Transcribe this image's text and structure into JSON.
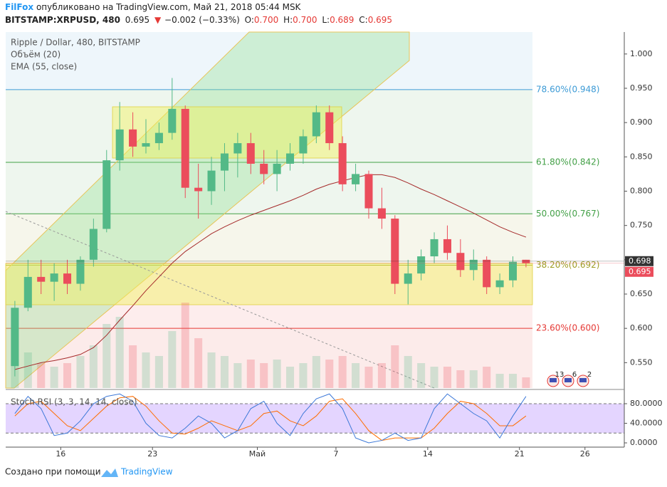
{
  "header": {
    "author": "FilFox",
    "published": "опубликовано на TradingView.com, Май 21, 2018 05:44 MSK",
    "symbol": "BITSTAMP:XRPUSD, 480",
    "last": "0.695",
    "arrow": "▼",
    "change": "−0.002 (−0.33%)",
    "o_label": "O:",
    "o": "0.700",
    "h_label": "H:",
    "h": "0.700",
    "l_label": "L:",
    "l": "0.689",
    "c_label": "C:",
    "c": "0.695"
  },
  "chart_data": {
    "type": "candlestick",
    "title": "Ripple / Dollar, 480, BITSTAMP",
    "volume_title": "Объём (20)",
    "ema_title": "EMA (55, close)",
    "x": [
      12.5,
      13.5,
      14.5,
      15.5,
      16.5,
      17.5,
      18.5,
      19.5,
      20.5,
      21.5,
      22.5,
      23.5,
      24.5,
      25.5,
      26.5,
      27.5,
      28.5,
      29.5,
      30.5,
      31.5,
      32.5,
      33.5,
      34.5,
      35.5,
      36.5,
      37.5,
      38.5,
      39.5,
      40.5,
      41.5,
      42.5,
      43.5,
      44.5,
      45.5,
      46.5,
      47.5,
      48.5,
      49.5,
      50.5,
      51.5
    ],
    "open": [
      0.545,
      0.63,
      0.675,
      0.668,
      0.68,
      0.665,
      0.7,
      0.745,
      0.845,
      0.89,
      0.865,
      0.87,
      0.885,
      0.92,
      0.805,
      0.8,
      0.83,
      0.855,
      0.87,
      0.84,
      0.825,
      0.84,
      0.855,
      0.88,
      0.915,
      0.87,
      0.81,
      0.825,
      0.775,
      0.76,
      0.665,
      0.68,
      0.705,
      0.73,
      0.71,
      0.685,
      0.7,
      0.66,
      0.67,
      0.7
    ],
    "high": [
      0.64,
      0.7,
      0.7,
      0.695,
      0.7,
      0.705,
      0.76,
      0.86,
      0.93,
      0.915,
      0.905,
      0.9,
      0.965,
      0.925,
      0.84,
      0.85,
      0.87,
      0.885,
      0.885,
      0.86,
      0.86,
      0.87,
      0.89,
      0.925,
      0.925,
      0.88,
      0.84,
      0.83,
      0.805,
      0.765,
      0.7,
      0.715,
      0.74,
      0.75,
      0.73,
      0.715,
      0.705,
      0.68,
      0.705,
      0.7
    ],
    "low": [
      0.53,
      0.625,
      0.65,
      0.64,
      0.65,
      0.655,
      0.69,
      0.74,
      0.83,
      0.85,
      0.855,
      0.86,
      0.875,
      0.79,
      0.76,
      0.78,
      0.8,
      0.82,
      0.825,
      0.81,
      0.8,
      0.83,
      0.84,
      0.87,
      0.86,
      0.8,
      0.8,
      0.76,
      0.745,
      0.65,
      0.635,
      0.67,
      0.695,
      0.7,
      0.675,
      0.67,
      0.65,
      0.65,
      0.66,
      0.689
    ],
    "close": [
      0.63,
      0.675,
      0.668,
      0.68,
      0.665,
      0.7,
      0.745,
      0.845,
      0.89,
      0.865,
      0.87,
      0.885,
      0.92,
      0.805,
      0.8,
      0.83,
      0.855,
      0.87,
      0.84,
      0.825,
      0.84,
      0.855,
      0.88,
      0.915,
      0.87,
      0.81,
      0.825,
      0.775,
      0.76,
      0.665,
      0.68,
      0.705,
      0.73,
      0.71,
      0.685,
      0.7,
      0.66,
      0.67,
      0.697,
      0.695
    ],
    "colors": {
      "up": "#53b987",
      "down": "#eb4d5c"
    },
    "volume": {
      "values": [
        8,
        10,
        7,
        6,
        7,
        9,
        12,
        18,
        20,
        12,
        10,
        9,
        16,
        24,
        14,
        10,
        9,
        7,
        8,
        7,
        8,
        6,
        7,
        9,
        8,
        9,
        7,
        6,
        7,
        12,
        9,
        7,
        6,
        6,
        5,
        5,
        6,
        4,
        4,
        3
      ],
      "ylim": [
        0,
        100
      ]
    },
    "ema": {
      "values": [
        0.54,
        0.545,
        0.55,
        0.553,
        0.557,
        0.562,
        0.572,
        0.59,
        0.612,
        0.633,
        0.655,
        0.675,
        0.695,
        0.712,
        0.725,
        0.738,
        0.748,
        0.757,
        0.765,
        0.772,
        0.779,
        0.786,
        0.794,
        0.803,
        0.81,
        0.815,
        0.82,
        0.824,
        0.824,
        0.82,
        0.812,
        0.803,
        0.795,
        0.786,
        0.777,
        0.768,
        0.758,
        0.748,
        0.74,
        0.733
      ],
      "color": "#a52a2a"
    },
    "xlim": [
      11.8,
      59.0
    ],
    "xticks": [
      16,
      23,
      {
        "value": 31,
        "label": "Май"
      },
      {
        "value": 37,
        "label": "7"
      },
      {
        "value": 44,
        "label": "14"
      },
      {
        "value": 51,
        "label": "21"
      },
      {
        "value": 56,
        "label": "26"
      }
    ],
    "ylim": [
      0.513,
      1.032
    ],
    "yticks": [
      {
        "value": 0.55,
        "label": "0.550"
      },
      {
        "value": 0.6,
        "label": "0.600"
      },
      {
        "value": 0.65,
        "label": "0.650"
      },
      {
        "value": 0.7,
        "label": "0.700"
      },
      {
        "value": 0.75,
        "label": "0.750"
      },
      {
        "value": 0.8,
        "label": "0.800"
      },
      {
        "value": 0.85,
        "label": "0.850"
      },
      {
        "value": 0.9,
        "label": "0.900"
      },
      {
        "value": 0.95,
        "label": "0.950"
      },
      {
        "value": 1.0,
        "label": "1.000"
      }
    ],
    "fib_levels": [
      {
        "value": 0.948,
        "label": "78.60%(0.948)",
        "color": "#3d9bd6"
      },
      {
        "value": 0.842,
        "label": "61.80%(0.842)",
        "color": "#43a047"
      },
      {
        "value": 0.767,
        "label": "50.00%(0.767)",
        "color": "#43a047"
      },
      {
        "value": 0.692,
        "label": "38.20%(0.692)",
        "color": "#9e9d24"
      },
      {
        "value": 0.6,
        "label": "23.60%(0.600)",
        "color": "#e53935"
      }
    ],
    "price_labels": [
      {
        "value": 0.698,
        "color": "#333333"
      },
      {
        "value": 0.695,
        "color": "#eb4d5c"
      }
    ],
    "events": [
      13,
      6,
      2
    ],
    "rsi": {
      "title": "Stoch RSI (3, 3, 14, 14, close)",
      "k": {
        "values": [
          60,
          95,
          70,
          15,
          20,
          45,
          80,
          95,
          100,
          85,
          40,
          15,
          10,
          30,
          55,
          40,
          10,
          25,
          70,
          85,
          40,
          15,
          60,
          90,
          100,
          70,
          10,
          0,
          5,
          20,
          5,
          10,
          70,
          100,
          80,
          60,
          45,
          10,
          55,
          95
        ],
        "color": "#3c78d8"
      },
      "d": {
        "values": [
          55,
          80,
          85,
          60,
          35,
          25,
          50,
          75,
          92,
          95,
          75,
          45,
          20,
          18,
          30,
          45,
          35,
          25,
          35,
          60,
          65,
          45,
          35,
          55,
          85,
          90,
          60,
          25,
          5,
          10,
          10,
          10,
          30,
          60,
          85,
          80,
          60,
          35,
          35,
          55
        ],
        "color": "#ff6d00"
      },
      "ylim": [
        -8.7,
        106.2
      ],
      "band": [
        20,
        80
      ],
      "yticks": [
        {
          "value": 0,
          "label": "0.0000"
        },
        {
          "value": 40,
          "label": "40.0000"
        },
        {
          "value": 80,
          "label": "80.0000"
        }
      ]
    }
  },
  "footer": {
    "text": "Создано при помощи",
    "brand": "TradingView"
  }
}
